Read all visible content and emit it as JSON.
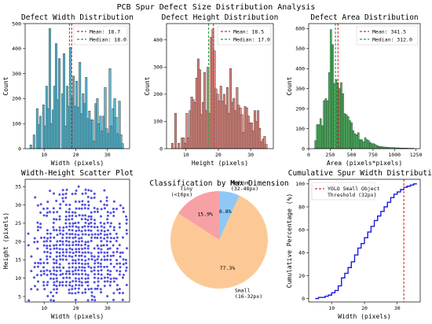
{
  "suptitle": "PCB Spur Defect Size Distribution Analysis",
  "colors": {
    "width_bar": "#5bb8d0",
    "height_bar": "#d98880",
    "area_bar": "#52b865",
    "mean_line": "#e8231c",
    "median_line": "#1f9e38",
    "scatter": "#1515d6",
    "cdf": "#1b1bdc",
    "threshold": "#e8231c",
    "pie_tiny": "#f7a1a4",
    "pie_small": "#fcc996",
    "pie_medium": "#8fc8f5"
  },
  "chart_data": [
    {
      "type": "bar",
      "title": "Defect Width Distribution",
      "xlabel": "Width (pixels)",
      "ylabel": "Count",
      "xlim": [
        4,
        37
      ],
      "ylim": [
        0,
        500
      ],
      "xticks": [
        10,
        20,
        30
      ],
      "yticks": [
        0,
        100,
        200,
        300,
        400,
        500
      ],
      "bin_width": 0.6,
      "bin_starts": [
        5.5,
        6.5,
        7.5,
        8.0,
        8.5,
        9.5,
        10.0,
        10.5,
        11.0,
        11.5,
        12.0,
        12.5,
        13.0,
        13.5,
        14.0,
        14.5,
        15.5,
        16.0,
        16.5,
        17.0,
        17.5,
        18.0,
        18.5,
        19.0,
        19.5,
        20.0,
        20.5,
        21.0,
        21.5,
        22.0,
        22.5,
        23.0,
        23.5,
        24.0,
        24.5,
        25.0,
        25.5,
        26.0,
        26.5,
        27.0,
        27.5,
        28.0,
        28.5,
        29.0,
        29.5,
        30.0,
        30.5,
        31.0,
        31.5,
        32.0,
        32.5,
        33.0,
        33.5,
        34.0,
        34.5
      ],
      "values": [
        15,
        55,
        160,
        95,
        130,
        175,
        90,
        250,
        160,
        480,
        100,
        155,
        250,
        420,
        195,
        360,
        220,
        380,
        90,
        250,
        170,
        405,
        205,
        290,
        170,
        270,
        165,
        345,
        140,
        220,
        180,
        285,
        120,
        150,
        115,
        115,
        30,
        180,
        200,
        100,
        130,
        70,
        130,
        245,
        80,
        60,
        320,
        90,
        160,
        200,
        125,
        60,
        190,
        55,
        20
      ],
      "mean": 18.7,
      "median": 18.0,
      "legend": [
        "Mean: 18.7",
        "Median: 18.0"
      ],
      "legend_loc": "upper right"
    },
    {
      "type": "bar",
      "title": "Defect Height Distribution",
      "xlabel": "Height (pixels)",
      "ylabel": "Count",
      "xlim": [
        4,
        37
      ],
      "ylim": [
        0,
        460
      ],
      "xticks": [
        10,
        20,
        30
      ],
      "yticks": [
        0,
        100,
        200,
        300,
        400
      ],
      "bin_width": 0.6,
      "bin_starts": [
        5.5,
        6.5,
        7.5,
        8.5,
        9.0,
        9.5,
        10.0,
        10.5,
        11.0,
        11.5,
        12.0,
        12.5,
        13.0,
        13.5,
        14.0,
        14.5,
        15.0,
        15.5,
        16.0,
        16.5,
        17.0,
        17.5,
        18.0,
        18.5,
        19.0,
        19.5,
        20.0,
        20.5,
        21.0,
        21.5,
        22.0,
        22.5,
        23.0,
        23.5,
        24.0,
        24.5,
        25.0,
        25.5,
        26.0,
        26.5,
        27.0,
        27.5,
        28.0,
        28.5,
        29.0,
        29.5,
        30.0,
        30.5,
        31.0,
        31.5,
        32.0,
        32.5,
        33.0,
        33.5,
        34.0,
        34.5
      ],
      "values": [
        20,
        130,
        20,
        40,
        40,
        20,
        130,
        40,
        140,
        190,
        180,
        170,
        260,
        330,
        290,
        125,
        170,
        280,
        140,
        300,
        130,
        410,
        440,
        360,
        220,
        200,
        175,
        230,
        175,
        200,
        160,
        225,
        130,
        295,
        170,
        185,
        140,
        225,
        160,
        150,
        125,
        60,
        155,
        150,
        120,
        95,
        95,
        65,
        140,
        100,
        140,
        75,
        25,
        35,
        45,
        15
      ],
      "mean": 18.5,
      "median": 17.0,
      "legend": [
        "Mean: 18.5",
        "Median: 17.0"
      ],
      "legend_loc": "upper right"
    },
    {
      "type": "bar",
      "title": "Defect Area Distribution",
      "xlabel": "Area (pixels*pixels)",
      "ylabel": "Count",
      "xlim": [
        0,
        1300
      ],
      "ylim": [
        0,
        625
      ],
      "xticks": [
        0,
        250,
        500,
        750,
        1000,
        1250
      ],
      "yticks": [
        0,
        100,
        200,
        300,
        400,
        500,
        600
      ],
      "bin_width": 19,
      "bin_starts": [
        70,
        90,
        110,
        130,
        150,
        170,
        190,
        210,
        230,
        250,
        270,
        290,
        310,
        330,
        350,
        370,
        390,
        410,
        430,
        450,
        470,
        490,
        510,
        530,
        550,
        570,
        590,
        610,
        630,
        650,
        670,
        690,
        710,
        730,
        750,
        770,
        790,
        810,
        830,
        850,
        870,
        890,
        910,
        930,
        950,
        970,
        990,
        1010,
        1030,
        1050,
        1070,
        1090,
        1110,
        1130,
        1150,
        1170,
        1190,
        1210
      ],
      "values": [
        40,
        120,
        120,
        150,
        115,
        240,
        250,
        240,
        380,
        595,
        520,
        325,
        345,
        330,
        300,
        330,
        275,
        175,
        170,
        160,
        140,
        130,
        90,
        75,
        70,
        80,
        45,
        45,
        35,
        55,
        45,
        40,
        30,
        25,
        25,
        20,
        15,
        12,
        10,
        10,
        8,
        8,
        6,
        6,
        5,
        5,
        5,
        4,
        4,
        4,
        3,
        3,
        3,
        3,
        2,
        2,
        2,
        2
      ],
      "mean": 341.5,
      "median": 312.0,
      "legend": [
        "Mean: 341.5",
        "Median: 312.0"
      ],
      "legend_loc": "upper right"
    },
    {
      "type": "scatter",
      "title": "Width-Height Scatter Plot",
      "xlabel": "Width (pixels)",
      "ylabel": "Height (pixels)",
      "xlim": [
        4,
        37
      ],
      "ylim": [
        3.5,
        37
      ],
      "xticks": [
        10,
        20,
        30
      ],
      "yticks": [
        5,
        10,
        15,
        20,
        25,
        30,
        35
      ],
      "x_range": [
        5,
        36
      ],
      "y_range": [
        4,
        36
      ]
    },
    {
      "type": "pie",
      "title": "Classification by Max Dimension",
      "slices": [
        {
          "label": "Tiny\n(<16px)",
          "value": 15.9,
          "pct": "15.9%"
        },
        {
          "label": "Small\n(16-32px)",
          "value": 77.3,
          "pct": "77.3%"
        },
        {
          "label": "Medium\n(32-48px)",
          "value": 6.8,
          "pct": "6.8%"
        }
      ]
    },
    {
      "type": "line",
      "title": "Cumulative Spur Width Distribution",
      "xlabel": "Width (pixels)",
      "ylabel": "Cumulative Percentage (%)",
      "xlim": [
        3,
        37
      ],
      "ylim": [
        -3,
        104
      ],
      "xticks": [
        10,
        20,
        30
      ],
      "yticks": [
        0,
        20,
        40,
        60,
        80,
        100
      ],
      "x": [
        5,
        6,
        7,
        8,
        9,
        10,
        11,
        12,
        13,
        14,
        15,
        16,
        17,
        18,
        19,
        20,
        21,
        22,
        23,
        24,
        25,
        26,
        27,
        28,
        29,
        30,
        31,
        32,
        33,
        34,
        35,
        36
      ],
      "y": [
        0,
        1,
        1,
        2,
        3,
        5,
        7,
        11,
        18,
        22,
        27,
        32,
        38,
        44,
        48,
        53,
        58,
        63,
        68,
        72,
        76,
        80,
        84,
        88,
        91,
        93,
        95,
        97,
        98,
        99,
        100,
        100
      ],
      "threshold": 32,
      "legend": [
        "YOLO Small Object\nThreshold (32px)"
      ],
      "legend_loc": "upper left"
    }
  ]
}
